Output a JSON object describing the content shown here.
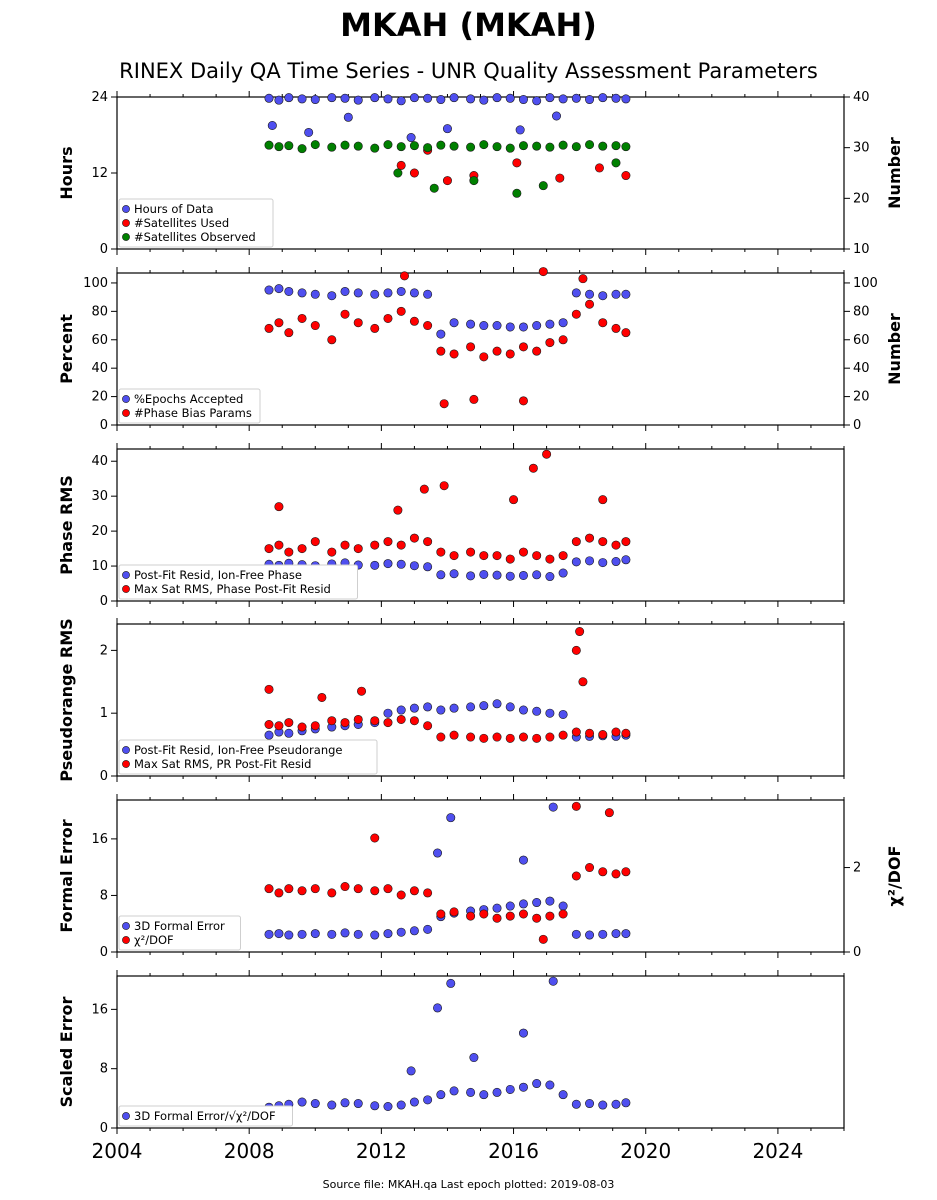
{
  "figure": {
    "title": "MKAH (MKAH)",
    "subtitle": "RINEX Daily QA Time Series - UNR Quality Assessment Parameters",
    "footer": "Source file: MKAH.qa Last epoch plotted: 2019-08-03",
    "x_ticks": [
      "2004",
      "2008",
      "2012",
      "2016",
      "2020",
      "2024"
    ],
    "marker_colors": {
      "blue": "#4f4fef",
      "red": "#ff0000",
      "green": "#008000"
    }
  },
  "chart_data": [
    {
      "type": "scatter",
      "ylabel": "Hours",
      "ylabel_right": "Number",
      "xlim": [
        2004,
        2026
      ],
      "ylim": [
        0,
        24
      ],
      "ylim_right": [
        10,
        40
      ],
      "yticks": [
        "0",
        "12",
        "24"
      ],
      "yticks_right": [
        "10",
        "20",
        "30",
        "40"
      ],
      "legend": [
        "Hours of Data",
        "#Satellites Used",
        "#Satellites Observed"
      ],
      "legend_placement": "lower-left",
      "series": [
        {
          "name": "Hours of Data",
          "color": "blue",
          "axis": "left",
          "x": [
            2008.6,
            2008.9,
            2009.2,
            2009.6,
            2010.0,
            2010.5,
            2010.9,
            2011.3,
            2011.8,
            2012.2,
            2012.6,
            2013.0,
            2013.4,
            2013.8,
            2014.2,
            2014.7,
            2015.1,
            2015.5,
            2015.9,
            2016.3,
            2016.7,
            2017.1,
            2017.5,
            2017.9,
            2018.3,
            2018.7,
            2019.1,
            2019.4,
            2008.7,
            2009.8,
            2011.0,
            2012.9,
            2014.0,
            2016.2,
            2017.3
          ],
          "y": [
            23.8,
            23.5,
            23.9,
            23.7,
            23.6,
            23.9,
            23.8,
            23.5,
            23.9,
            23.7,
            23.4,
            23.9,
            23.8,
            23.6,
            23.9,
            23.7,
            23.5,
            23.9,
            23.8,
            23.6,
            23.4,
            23.9,
            23.7,
            23.8,
            23.6,
            23.9,
            23.8,
            23.7,
            19.5,
            18.4,
            20.8,
            17.6,
            19.0,
            18.8,
            21.0
          ]
        },
        {
          "name": "#Satellites Used",
          "color": "red",
          "axis": "right",
          "x": [
            2012.6,
            2013.0,
            2013.4,
            2014.0,
            2014.8,
            2016.1,
            2017.4,
            2018.6,
            2019.4
          ],
          "y": [
            26.5,
            25,
            29.5,
            23.5,
            24.5,
            27,
            24,
            26,
            24.5
          ]
        },
        {
          "name": "#Satellites Observed",
          "color": "green",
          "axis": "right",
          "x": [
            2008.6,
            2008.9,
            2009.2,
            2009.6,
            2010.0,
            2010.5,
            2010.9,
            2011.3,
            2011.8,
            2012.2,
            2012.6,
            2013.0,
            2013.4,
            2013.8,
            2014.2,
            2014.7,
            2015.1,
            2015.5,
            2015.9,
            2016.3,
            2016.7,
            2017.1,
            2017.5,
            2017.9,
            2018.3,
            2018.7,
            2019.1,
            2019.4,
            2013.6,
            2014.8,
            2016.1,
            2016.9,
            2012.5,
            2019.1
          ],
          "y": [
            30.5,
            30.2,
            30.4,
            29.8,
            30.6,
            30.1,
            30.5,
            30.3,
            29.9,
            30.6,
            30.2,
            30.4,
            30.0,
            30.5,
            30.3,
            30.1,
            30.6,
            30.2,
            29.9,
            30.4,
            30.3,
            30.1,
            30.5,
            30.2,
            30.6,
            30.3,
            30.4,
            30.2,
            22,
            23.5,
            21,
            22.5,
            25,
            27
          ]
        }
      ]
    },
    {
      "type": "scatter",
      "ylabel": "Percent",
      "ylabel_right": "Number",
      "xlim": [
        2004,
        2026
      ],
      "ylim": [
        0,
        107
      ],
      "yticks": [
        "0",
        "20",
        "40",
        "60",
        "80",
        "100"
      ],
      "yticks_right": [
        "0",
        "20",
        "40",
        "60",
        "80",
        "100"
      ],
      "legend": [
        "%Epochs Accepted",
        "#Phase Bias Params"
      ],
      "legend_placement": "lower-left",
      "series": [
        {
          "name": "%Epochs Accepted",
          "color": "blue",
          "axis": "left",
          "x": [
            2008.6,
            2008.9,
            2009.2,
            2009.6,
            2010.0,
            2010.5,
            2010.9,
            2011.3,
            2011.8,
            2012.2,
            2012.6,
            2013.0,
            2013.4,
            2013.8,
            2014.2,
            2014.7,
            2015.1,
            2015.5,
            2015.9,
            2016.3,
            2016.7,
            2017.1,
            2017.5,
            2017.9,
            2018.3,
            2018.7,
            2019.1,
            2019.4
          ],
          "y": [
            95,
            96,
            94,
            93,
            92,
            91,
            94,
            93,
            92,
            93,
            94,
            93,
            92,
            64,
            72,
            71,
            70,
            70,
            69,
            69,
            70,
            71,
            72,
            93,
            92,
            91,
            92,
            92
          ]
        },
        {
          "name": "#Phase Bias Params",
          "color": "red",
          "axis": "right",
          "x": [
            2008.6,
            2008.9,
            2009.2,
            2009.6,
            2010.0,
            2010.5,
            2010.9,
            2011.3,
            2011.8,
            2012.2,
            2012.6,
            2013.0,
            2013.4,
            2013.8,
            2014.2,
            2014.7,
            2015.1,
            2015.5,
            2015.9,
            2016.3,
            2016.7,
            2017.1,
            2017.5,
            2017.9,
            2018.3,
            2018.7,
            2019.1,
            2019.4,
            2012.7,
            2016.9,
            2013.9,
            2014.8,
            2016.3,
            2018.1
          ],
          "y": [
            68,
            72,
            65,
            75,
            70,
            60,
            78,
            72,
            68,
            75,
            80,
            73,
            70,
            52,
            50,
            55,
            48,
            52,
            50,
            55,
            52,
            58,
            60,
            78,
            85,
            72,
            68,
            65,
            105,
            108,
            15,
            18,
            17,
            103
          ]
        }
      ]
    },
    {
      "type": "scatter",
      "ylabel": "Phase RMS",
      "xlim": [
        2004,
        2026
      ],
      "ylim": [
        0,
        43.5
      ],
      "yticks": [
        "0",
        "10",
        "20",
        "30",
        "40"
      ],
      "legend": [
        "Post-Fit Resid, Ion-Free Phase",
        "Max Sat RMS, Phase Post-Fit Resid"
      ],
      "legend_placement": "lower-left",
      "series": [
        {
          "name": "Post-Fit Resid, Ion-Free Phase",
          "color": "blue",
          "x": [
            2008.6,
            2008.9,
            2009.2,
            2009.6,
            2010.0,
            2010.5,
            2010.9,
            2011.3,
            2011.8,
            2012.2,
            2012.6,
            2013.0,
            2013.4,
            2013.8,
            2014.2,
            2014.7,
            2015.1,
            2015.5,
            2015.9,
            2016.3,
            2016.7,
            2017.1,
            2017.5,
            2017.9,
            2018.3,
            2018.7,
            2019.1,
            2019.4
          ],
          "y": [
            10.5,
            10.2,
            10.8,
            10.4,
            10.1,
            10.6,
            10.9,
            10.3,
            10.2,
            10.7,
            10.5,
            10.1,
            9.8,
            7.5,
            7.8,
            7.2,
            7.6,
            7.4,
            7.1,
            7.3,
            7.5,
            7.0,
            8.0,
            11.2,
            11.5,
            11.0,
            11.3,
            11.8
          ]
        },
        {
          "name": "Max Sat RMS, Phase Post-Fit Resid",
          "color": "red",
          "x": [
            2008.6,
            2008.9,
            2009.2,
            2009.6,
            2010.0,
            2010.5,
            2010.9,
            2011.3,
            2011.8,
            2012.2,
            2012.6,
            2013.0,
            2013.4,
            2013.8,
            2014.2,
            2014.7,
            2015.1,
            2015.5,
            2015.9,
            2016.3,
            2016.7,
            2017.1,
            2017.5,
            2017.9,
            2018.3,
            2018.7,
            2019.1,
            2019.4,
            2008.9,
            2012.5,
            2013.3,
            2013.9,
            2016.0,
            2016.6,
            2017.0,
            2018.7
          ],
          "y": [
            15,
            16,
            14,
            15,
            17,
            14,
            16,
            15,
            16,
            17,
            16,
            18,
            17,
            14,
            13,
            14,
            13,
            13,
            12,
            14,
            13,
            12,
            13,
            17,
            18,
            17,
            16,
            17,
            27,
            26,
            32,
            33,
            29,
            38,
            42,
            29
          ]
        }
      ]
    },
    {
      "type": "scatter",
      "ylabel": "Pseudorange RMS",
      "xlim": [
        2004,
        2026
      ],
      "ylim": [
        0,
        2.42
      ],
      "yticks": [
        "0",
        "1",
        "2"
      ],
      "legend": [
        "Post-Fit Resid, Ion-Free Pseudorange",
        "Max Sat RMS, PR Post-Fit Resid"
      ],
      "legend_placement": "lower-left",
      "series": [
        {
          "name": "Post-Fit Resid, Ion-Free Pseudorange",
          "color": "blue",
          "x": [
            2008.6,
            2008.9,
            2009.2,
            2009.6,
            2010.0,
            2010.5,
            2010.9,
            2011.3,
            2011.8,
            2012.2,
            2012.6,
            2013.0,
            2013.4,
            2013.8,
            2014.2,
            2014.7,
            2015.1,
            2015.5,
            2015.9,
            2016.3,
            2016.7,
            2017.1,
            2017.5,
            2017.9,
            2018.3,
            2018.7,
            2019.1,
            2019.4
          ],
          "y": [
            0.65,
            0.7,
            0.68,
            0.72,
            0.75,
            0.78,
            0.8,
            0.82,
            0.85,
            1.0,
            1.05,
            1.08,
            1.1,
            1.05,
            1.08,
            1.1,
            1.12,
            1.15,
            1.1,
            1.05,
            1.03,
            1.0,
            0.98,
            0.62,
            0.63,
            0.64,
            0.63,
            0.65
          ]
        },
        {
          "name": "Max Sat RMS, PR Post-Fit Resid",
          "color": "red",
          "x": [
            2008.6,
            2008.9,
            2009.2,
            2009.6,
            2010.0,
            2010.5,
            2010.9,
            2011.3,
            2011.8,
            2012.2,
            2012.6,
            2013.0,
            2013.4,
            2013.8,
            2014.2,
            2014.7,
            2015.1,
            2015.5,
            2015.9,
            2016.3,
            2016.7,
            2017.1,
            2017.5,
            2017.9,
            2018.3,
            2018.7,
            2019.1,
            2019.4,
            2008.6,
            2010.2,
            2011.4,
            2017.9,
            2018.0,
            2018.1
          ],
          "y": [
            0.82,
            0.8,
            0.85,
            0.78,
            0.8,
            0.88,
            0.85,
            0.9,
            0.88,
            0.85,
            0.9,
            0.88,
            0.8,
            0.62,
            0.65,
            0.62,
            0.6,
            0.62,
            0.6,
            0.62,
            0.6,
            0.62,
            0.65,
            0.7,
            0.68,
            0.66,
            0.7,
            0.68,
            1.38,
            1.25,
            1.35,
            2.0,
            2.3,
            1.5
          ]
        }
      ]
    },
    {
      "type": "scatter",
      "ylabel": "Formal Error",
      "ylabel_right": "χ²/DOF",
      "xlim": [
        2004,
        2026
      ],
      "ylim": [
        0,
        21.5
      ],
      "ylim_right": [
        0,
        3.6
      ],
      "yticks": [
        "0",
        "8",
        "16"
      ],
      "yticks_right": [
        "0",
        "2"
      ],
      "legend": [
        "3D Formal Error",
        "χ²/DOF"
      ],
      "legend_placement": "lower-left",
      "series": [
        {
          "name": "3D Formal Error",
          "color": "blue",
          "axis": "left",
          "x": [
            2008.6,
            2008.9,
            2009.2,
            2009.6,
            2010.0,
            2010.5,
            2010.9,
            2011.3,
            2011.8,
            2012.2,
            2012.6,
            2013.0,
            2013.4,
            2013.8,
            2014.2,
            2014.7,
            2015.1,
            2015.5,
            2015.9,
            2016.3,
            2016.7,
            2017.1,
            2017.5,
            2017.9,
            2018.3,
            2018.7,
            2019.1,
            2019.4,
            2014.1,
            2017.2,
            2016.3,
            2013.7
          ],
          "y": [
            2.5,
            2.6,
            2.4,
            2.5,
            2.6,
            2.5,
            2.7,
            2.5,
            2.4,
            2.6,
            2.8,
            3.0,
            3.2,
            5,
            5.5,
            5.8,
            6,
            6.2,
            6.5,
            6.8,
            7,
            7.2,
            6.5,
            2.5,
            2.4,
            2.5,
            2.6,
            2.6,
            19,
            20.5,
            13,
            14
          ]
        },
        {
          "name": "χ²/DOF",
          "color": "red",
          "axis": "right",
          "x": [
            2008.6,
            2008.9,
            2009.2,
            2009.6,
            2010.0,
            2010.5,
            2010.9,
            2011.3,
            2011.8,
            2012.2,
            2012.6,
            2013.0,
            2013.4,
            2013.8,
            2014.2,
            2014.7,
            2015.1,
            2015.5,
            2015.9,
            2016.3,
            2016.7,
            2017.1,
            2017.5,
            2017.9,
            2018.3,
            2018.7,
            2019.1,
            2019.4,
            2011.8,
            2017.9,
            2018.9,
            2016.9
          ],
          "y": [
            1.5,
            1.4,
            1.5,
            1.45,
            1.5,
            1.4,
            1.55,
            1.5,
            1.45,
            1.5,
            1.35,
            1.45,
            1.4,
            0.9,
            0.95,
            0.85,
            0.9,
            0.8,
            0.85,
            0.9,
            0.8,
            0.85,
            0.9,
            1.8,
            2.0,
            1.9,
            1.85,
            1.9,
            2.7,
            3.45,
            3.3,
            0.3
          ]
        }
      ]
    },
    {
      "type": "scatter",
      "ylabel": "Scaled Error",
      "xlim": [
        2004,
        2026
      ],
      "ylim": [
        0,
        20.5
      ],
      "yticks": [
        "0",
        "8",
        "16"
      ],
      "legend": [
        "3D Formal Error/√χ²/DOF"
      ],
      "legend_placement": "lower-left",
      "series": [
        {
          "name": "3D Formal Error/√χ²/DOF",
          "color": "blue",
          "x": [
            2008.6,
            2008.9,
            2009.2,
            2009.6,
            2010.0,
            2010.5,
            2010.9,
            2011.3,
            2011.8,
            2012.2,
            2012.6,
            2013.0,
            2013.4,
            2013.8,
            2014.2,
            2014.7,
            2015.1,
            2015.5,
            2015.9,
            2016.3,
            2016.7,
            2017.1,
            2017.5,
            2017.9,
            2018.3,
            2018.7,
            2019.1,
            2019.4,
            2013.7,
            2014.1,
            2016.3,
            2017.2,
            2014.8,
            2012.9
          ],
          "y": [
            2.8,
            3.0,
            3.2,
            3.5,
            3.3,
            3.1,
            3.4,
            3.3,
            3.0,
            2.9,
            3.1,
            3.5,
            3.8,
            4.5,
            5.0,
            4.8,
            4.5,
            4.8,
            5.2,
            5.5,
            6.0,
            5.8,
            4.5,
            3.2,
            3.3,
            3.1,
            3.2,
            3.4,
            16.2,
            19.5,
            12.8,
            19.8,
            9.5,
            7.7
          ]
        }
      ]
    }
  ]
}
